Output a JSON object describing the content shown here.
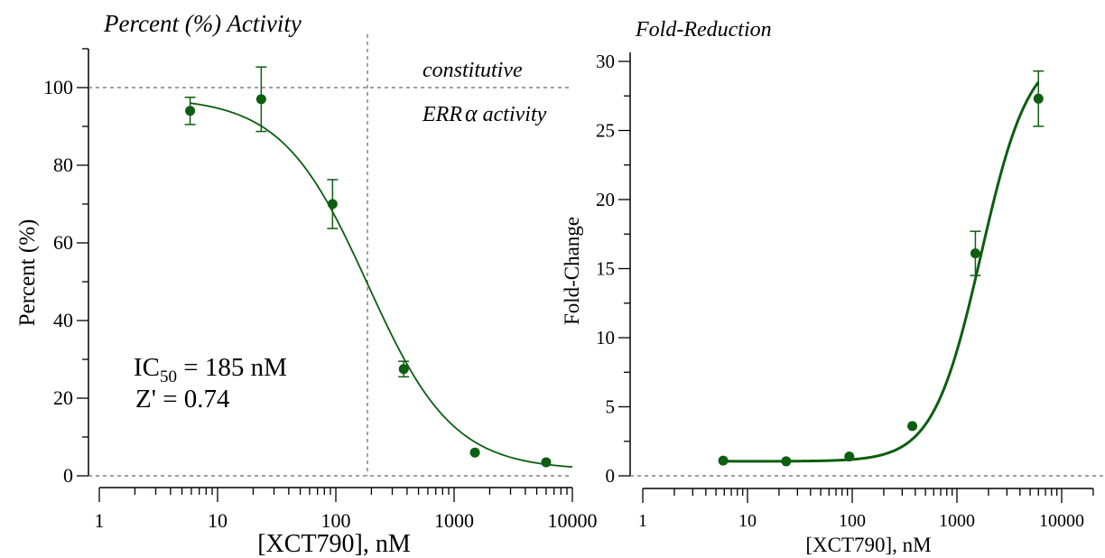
{
  "chart_data": [
    {
      "type": "scatter",
      "title": "Percent (%) Activity",
      "xlabel": "[XCT790], nM",
      "ylabel": "Percent (%)",
      "x_scale": "log",
      "xlim": [
        1,
        10000
      ],
      "ylim": [
        0,
        110
      ],
      "x_ticks": [
        1,
        10,
        100,
        1000,
        10000
      ],
      "x_tick_labels": [
        "1",
        "10",
        "100",
        "1000",
        "10000"
      ],
      "y_ticks": [
        0,
        20,
        40,
        60,
        80,
        100
      ],
      "y_tick_labels": [
        "0",
        "20",
        "40",
        "60",
        "80",
        "100"
      ],
      "series": [
        {
          "x": [
            5.86,
            23.4,
            93.8,
            375,
            1500,
            6000
          ],
          "y": [
            94,
            97,
            70,
            27.5,
            6,
            3.5
          ],
          "error": [
            3.5,
            8.3,
            6.3,
            2,
            0,
            0
          ]
        }
      ],
      "fit": {
        "model": "logistic",
        "top": 97.5,
        "bottom": 1.5,
        "ic50": 185,
        "hill": -1.2
      },
      "reference_lines": {
        "horizontal": [
          100,
          0
        ],
        "vertical": [
          185
        ]
      },
      "annotations": {
        "constitutive": "constitutive",
        "err_prefix": "ERR",
        "err_greek": "α",
        "err_suffix": " activity",
        "ic50_prefix": "IC",
        "ic50_sub": "50",
        "ic50_value": " = 185 nM",
        "zprime": "Z' = 0.74"
      },
      "color": "#0d5e10",
      "grid": false
    },
    {
      "type": "scatter",
      "title": "Fold-Reduction",
      "xlabel": "[XCT790], nM",
      "ylabel": "Fold-Change",
      "x_scale": "log",
      "xlim": [
        1,
        20000
      ],
      "ylim": [
        0,
        30
      ],
      "x_ticks": [
        1,
        10,
        100,
        1000,
        10000
      ],
      "x_tick_labels": [
        "1",
        "10",
        "100",
        "1000",
        "10000"
      ],
      "y_ticks": [
        0,
        5,
        10,
        15,
        20,
        25,
        30
      ],
      "y_tick_labels": [
        "0",
        "5",
        "10",
        "15",
        "20",
        "25",
        "30"
      ],
      "series": [
        {
          "x": [
            5.86,
            23.4,
            93.8,
            375,
            1500,
            6000
          ],
          "y": [
            1.1,
            1.05,
            1.4,
            3.6,
            16.1,
            27.3
          ],
          "error": [
            0,
            0,
            0,
            0,
            1.6,
            2.0
          ]
        }
      ],
      "fit": {
        "model": "logistic",
        "top": 31,
        "bottom": 1.05,
        "ec50": 1700,
        "hill": 1.9
      },
      "reference_lines": {
        "horizontal": [
          0
        ]
      },
      "color": "#0d5e10",
      "grid": false
    }
  ]
}
